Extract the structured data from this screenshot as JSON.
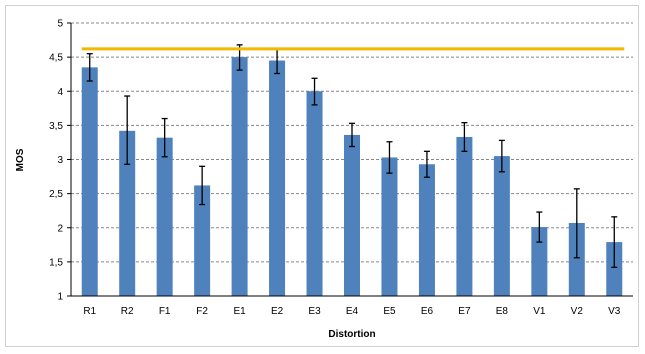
{
  "chart_data": {
    "type": "bar",
    "xlabel": "Distortion",
    "ylabel": "MOS",
    "ylim": [
      1,
      5
    ],
    "yticks": [
      1,
      1.5,
      2,
      2.5,
      3,
      3.5,
      4,
      4.5,
      5
    ],
    "ytick_labels": [
      "1",
      "1,5",
      "2",
      "2,5",
      "3",
      "3,5",
      "4",
      "4,5",
      "5"
    ],
    "grid": "horizontal dashed",
    "categories": [
      "R1",
      "R2",
      "F1",
      "F2",
      "E1",
      "E2",
      "E3",
      "E4",
      "E5",
      "E6",
      "E7",
      "E8",
      "V1",
      "V2",
      "V3"
    ],
    "values": [
      4.35,
      3.42,
      3.32,
      2.62,
      4.5,
      4.45,
      4.0,
      3.36,
      3.03,
      2.93,
      3.33,
      3.05,
      2.01,
      2.07,
      1.79
    ],
    "error_low": [
      4.15,
      2.93,
      3.04,
      2.34,
      4.31,
      4.26,
      3.8,
      3.19,
      2.8,
      2.74,
      3.12,
      2.82,
      1.79,
      1.56,
      1.42
    ],
    "error_high": [
      4.55,
      3.93,
      3.6,
      2.9,
      4.68,
      4.63,
      4.19,
      3.53,
      3.26,
      3.12,
      3.54,
      3.28,
      2.23,
      2.57,
      2.16
    ],
    "reference_line": 4.62,
    "colors": {
      "bar": "#4F81BD",
      "reference": "#F5B800",
      "grid": "#888888",
      "error": "#000000"
    }
  }
}
